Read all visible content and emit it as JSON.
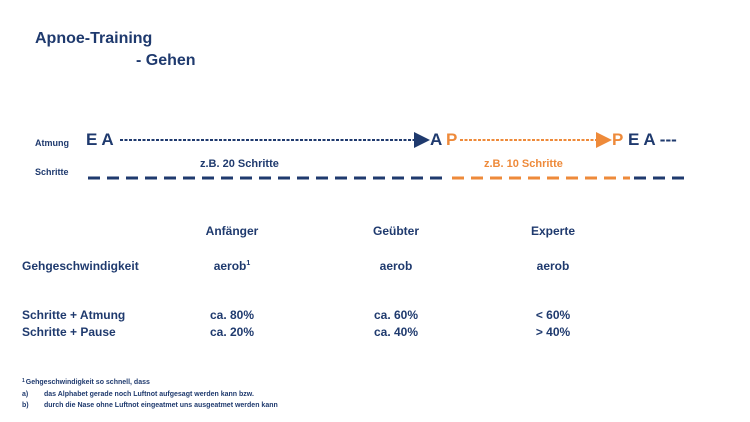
{
  "header": {
    "title": "Apnoe-Training",
    "subtitle": "- Gehen"
  },
  "diagram": {
    "atmung_label": "Atmung",
    "schritte_label": "Schritte",
    "start": "E A",
    "apnea_start": "A",
    "pause_start": "P",
    "pause_end": "P",
    "end": "E A ---",
    "breathing_steps": "z.B. 20 Schritte",
    "pause_steps": "z.B. 10 Schritte"
  },
  "table": {
    "headers": [
      "Anfänger",
      "Geübter",
      "Experte"
    ],
    "rows": [
      {
        "label": "Gehgeschwindigkeit",
        "cells": [
          "aerob",
          "aerob",
          "aerob"
        ],
        "note": "1"
      },
      {
        "label": "Schritte + Atmung",
        "cells": [
          "ca. 80%",
          "ca. 60%",
          "< 60%"
        ]
      },
      {
        "label": "Schritte + Pause",
        "cells": [
          "ca. 20%",
          "ca. 40%",
          "> 40%"
        ]
      }
    ]
  },
  "footnote": {
    "marker": "1",
    "text": "Gehgeschwindigkeit so schnell, dass",
    "items": [
      {
        "marker": "a)",
        "text": "das Alphabet gerade noch Luftnot aufgesagt werden kann bzw."
      },
      {
        "marker": "b)",
        "text": "durch die Nase ohne Luftnot eingeatmet uns ausgeatmet  werden kann"
      }
    ]
  }
}
